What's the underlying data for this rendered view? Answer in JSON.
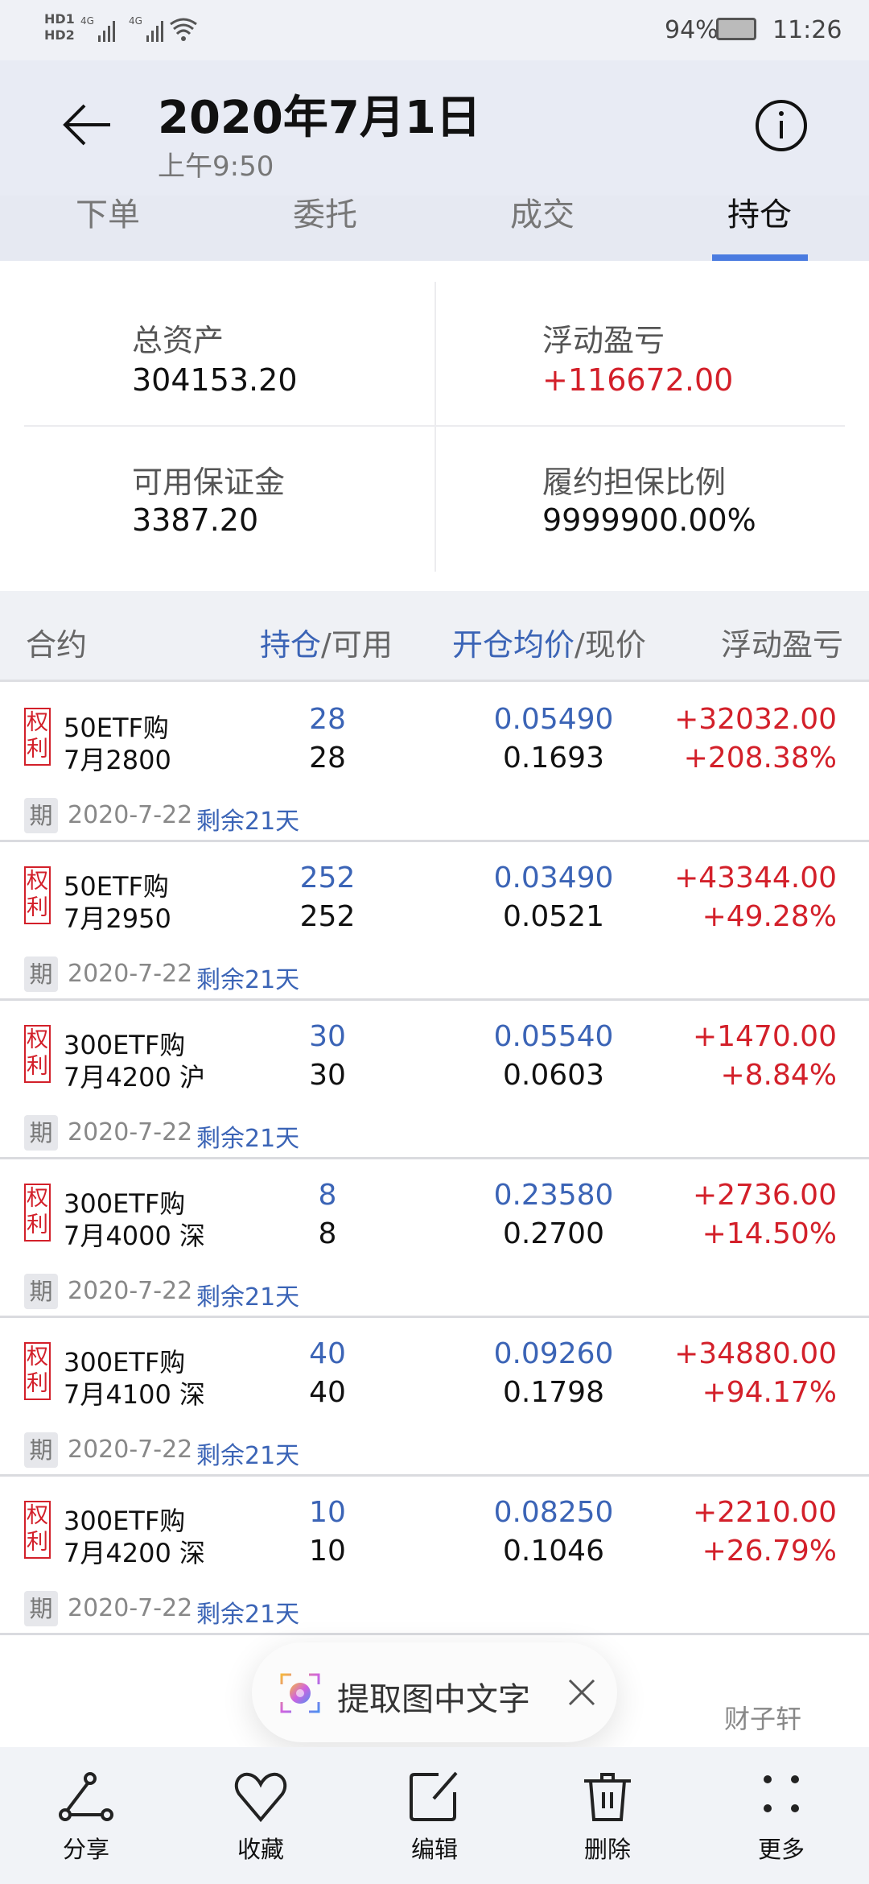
{
  "status_bar": {
    "signal_left": "HD1 HD2 4G 4G",
    "battery": "94%",
    "time": "11:26"
  },
  "header": {
    "title": "2020年7月1日",
    "subtitle": "上午9:50"
  },
  "tabs": [
    {
      "label": "下单"
    },
    {
      "label": "委托"
    },
    {
      "label": "成交"
    },
    {
      "label": "持仓",
      "active": true
    }
  ],
  "summary": {
    "total_assets": {
      "label": "总资产",
      "value": "304153.20"
    },
    "floating_pnl": {
      "label": "浮动盈亏",
      "value": "+116672.00"
    },
    "available_margin": {
      "label": "可用保证金",
      "value": "3387.20"
    },
    "guarantee_ratio": {
      "label": "履约担保比例",
      "value": "9999900.00%"
    }
  },
  "table_header": {
    "contract": "合约",
    "position_a": "持仓",
    "position_b": "/可用",
    "price_a": "开仓均价",
    "price_b": "/现价",
    "pnl": "浮动盈亏"
  },
  "badge_text": {
    "right_1": "权",
    "right_2": "利",
    "expiry": "期"
  },
  "rows": [
    {
      "name": "50ETF购",
      "detail": "7月2800",
      "position": "28",
      "available": "28",
      "avg_price": "0.05490",
      "cur_price": "0.1693",
      "pnl": "+32032.00",
      "pnl_pct": "+208.38%",
      "expiry": "2020-7-22",
      "remaining": "剩余21天"
    },
    {
      "name": "50ETF购",
      "detail": "7月2950",
      "position": "252",
      "available": "252",
      "avg_price": "0.03490",
      "cur_price": "0.0521",
      "pnl": "+43344.00",
      "pnl_pct": "+49.28%",
      "expiry": "2020-7-22",
      "remaining": "剩余21天"
    },
    {
      "name": "300ETF购",
      "detail": "7月4200 沪",
      "position": "30",
      "available": "30",
      "avg_price": "0.05540",
      "cur_price": "0.0603",
      "pnl": "+1470.00",
      "pnl_pct": "+8.84%",
      "expiry": "2020-7-22",
      "remaining": "剩余21天"
    },
    {
      "name": "300ETF购",
      "detail": "7月4000 深",
      "position": "8",
      "available": "8",
      "avg_price": "0.23580",
      "cur_price": "0.2700",
      "pnl": "+2736.00",
      "pnl_pct": "+14.50%",
      "expiry": "2020-7-22",
      "remaining": "剩余21天"
    },
    {
      "name": "300ETF购",
      "detail": "7月4100 深",
      "position": "40",
      "available": "40",
      "avg_price": "0.09260",
      "cur_price": "0.1798",
      "pnl": "+34880.00",
      "pnl_pct": "+94.17%",
      "expiry": "2020-7-22",
      "remaining": "剩余21天"
    },
    {
      "name": "300ETF购",
      "detail": "7月4200 深",
      "position": "10",
      "available": "10",
      "avg_price": "0.08250",
      "cur_price": "0.1046",
      "pnl": "+2210.00",
      "pnl_pct": "+26.79%",
      "expiry": "2020-7-22",
      "remaining": "剩余21天"
    }
  ],
  "toast": {
    "label": "提取图中文字",
    "icon": "camera-lens-icon"
  },
  "bottom_bar": [
    {
      "label": "分享",
      "icon": "share-icon"
    },
    {
      "label": "收藏",
      "icon": "heart-icon"
    },
    {
      "label": "编辑",
      "icon": "edit-icon"
    },
    {
      "label": "删除",
      "icon": "trash-icon"
    },
    {
      "label": "更多",
      "icon": "more-icon"
    }
  ],
  "watermark": "财子轩",
  "colors": {
    "accent": "#4a7be0",
    "blue": "#3b64b6",
    "red": "#d3202a"
  }
}
